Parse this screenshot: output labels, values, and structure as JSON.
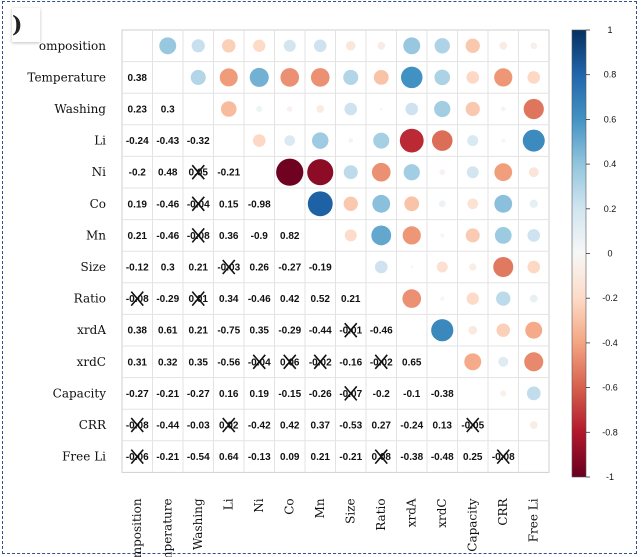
{
  "panel_label": ")",
  "chart_data": {
    "type": "heatmap",
    "title": "",
    "variables": [
      "Composition",
      "Temperature",
      "Washing",
      "Li",
      "Ni",
      "Co",
      "Mn",
      "Size",
      "Ratio",
      "xrdA",
      "xrdC",
      "Capacity",
      "CRR",
      "Free Li"
    ],
    "row_labels": [
      "omposition",
      "Temperature",
      "Washing",
      "Li",
      "Ni",
      "Co",
      "Mn",
      "Size",
      "Ratio",
      "xrdA",
      "xrdC",
      "Capacity",
      "CRR",
      "Free Li"
    ],
    "col_labels": [
      "Composition",
      "Temperature",
      "Washing",
      "Li",
      "Ni",
      "Co",
      "Mn",
      "Size",
      "Ratio",
      "xrdA",
      "xrdC",
      "Capacity",
      "CRR",
      "Free Li"
    ],
    "lower_triangle_labels": [
      [],
      [
        "0.38"
      ],
      [
        "0.23",
        "0.3"
      ],
      [
        "-0.24",
        "-0.43",
        "-0.32"
      ],
      [
        "-0.2",
        "0.48",
        "0.05",
        "-0.21"
      ],
      [
        "0.19",
        "-0.46",
        "-0.04",
        "0.15",
        "-0.98"
      ],
      [
        "0.21",
        "-0.46",
        "-0.08",
        "0.36",
        "-0.9",
        "0.82"
      ],
      [
        "-0.12",
        "0.3",
        "0.21",
        "-0.03",
        "0.26",
        "-0.27",
        "-0.19"
      ],
      [
        "-0.08",
        "-0.29",
        "0.01",
        "0.34",
        "-0.46",
        "0.42",
        "0.52",
        "0.21"
      ],
      [
        "0.38",
        "0.61",
        "0.21",
        "-0.75",
        "0.35",
        "-0.29",
        "-0.44",
        "-0.01",
        "-0.46"
      ],
      [
        "0.31",
        "0.32",
        "0.35",
        "-0.56",
        "-0.04",
        "0.06",
        "-0.02",
        "-0.16",
        "-0.02",
        "0.65"
      ],
      [
        "-0.27",
        "-0.21",
        "-0.27",
        "0.16",
        "0.19",
        "-0.15",
        "-0.26",
        "-0.07",
        "-0.2",
        "-0.1",
        "-0.38"
      ],
      [
        "-0.08",
        "-0.44",
        "-0.03",
        "0.02",
        "-0.42",
        "0.42",
        "0.37",
        "-0.53",
        "0.27",
        "-0.24",
        "0.13",
        "-0.05"
      ],
      [
        "-0.06",
        "-0.21",
        "-0.54",
        "0.64",
        "-0.13",
        "0.09",
        "0.21",
        "-0.21",
        "0.08",
        "-0.38",
        "-0.48",
        "0.25",
        "-0.08"
      ]
    ],
    "crossed_out_labels": [
      [
        4,
        2
      ],
      [
        5,
        2
      ],
      [
        6,
        2
      ],
      [
        7,
        3
      ],
      [
        8,
        0
      ],
      [
        8,
        2
      ],
      [
        9,
        7
      ],
      [
        10,
        4
      ],
      [
        10,
        5
      ],
      [
        10,
        6
      ],
      [
        10,
        8
      ],
      [
        11,
        7
      ],
      [
        12,
        0
      ],
      [
        12,
        3
      ],
      [
        12,
        11
      ],
      [
        13,
        0
      ],
      [
        13,
        8
      ],
      [
        13,
        12
      ]
    ],
    "colorbar": {
      "min": -1,
      "max": 1,
      "ticks": [
        "1",
        "0.8",
        "0.6",
        "0.4",
        "0.2",
        "0",
        "-0.2",
        "-0.4",
        "-0.6",
        "-0.8",
        "-1"
      ],
      "positive_color": "#053061",
      "mid_color": "#f7f7f7",
      "negative_color": "#67001f"
    }
  }
}
